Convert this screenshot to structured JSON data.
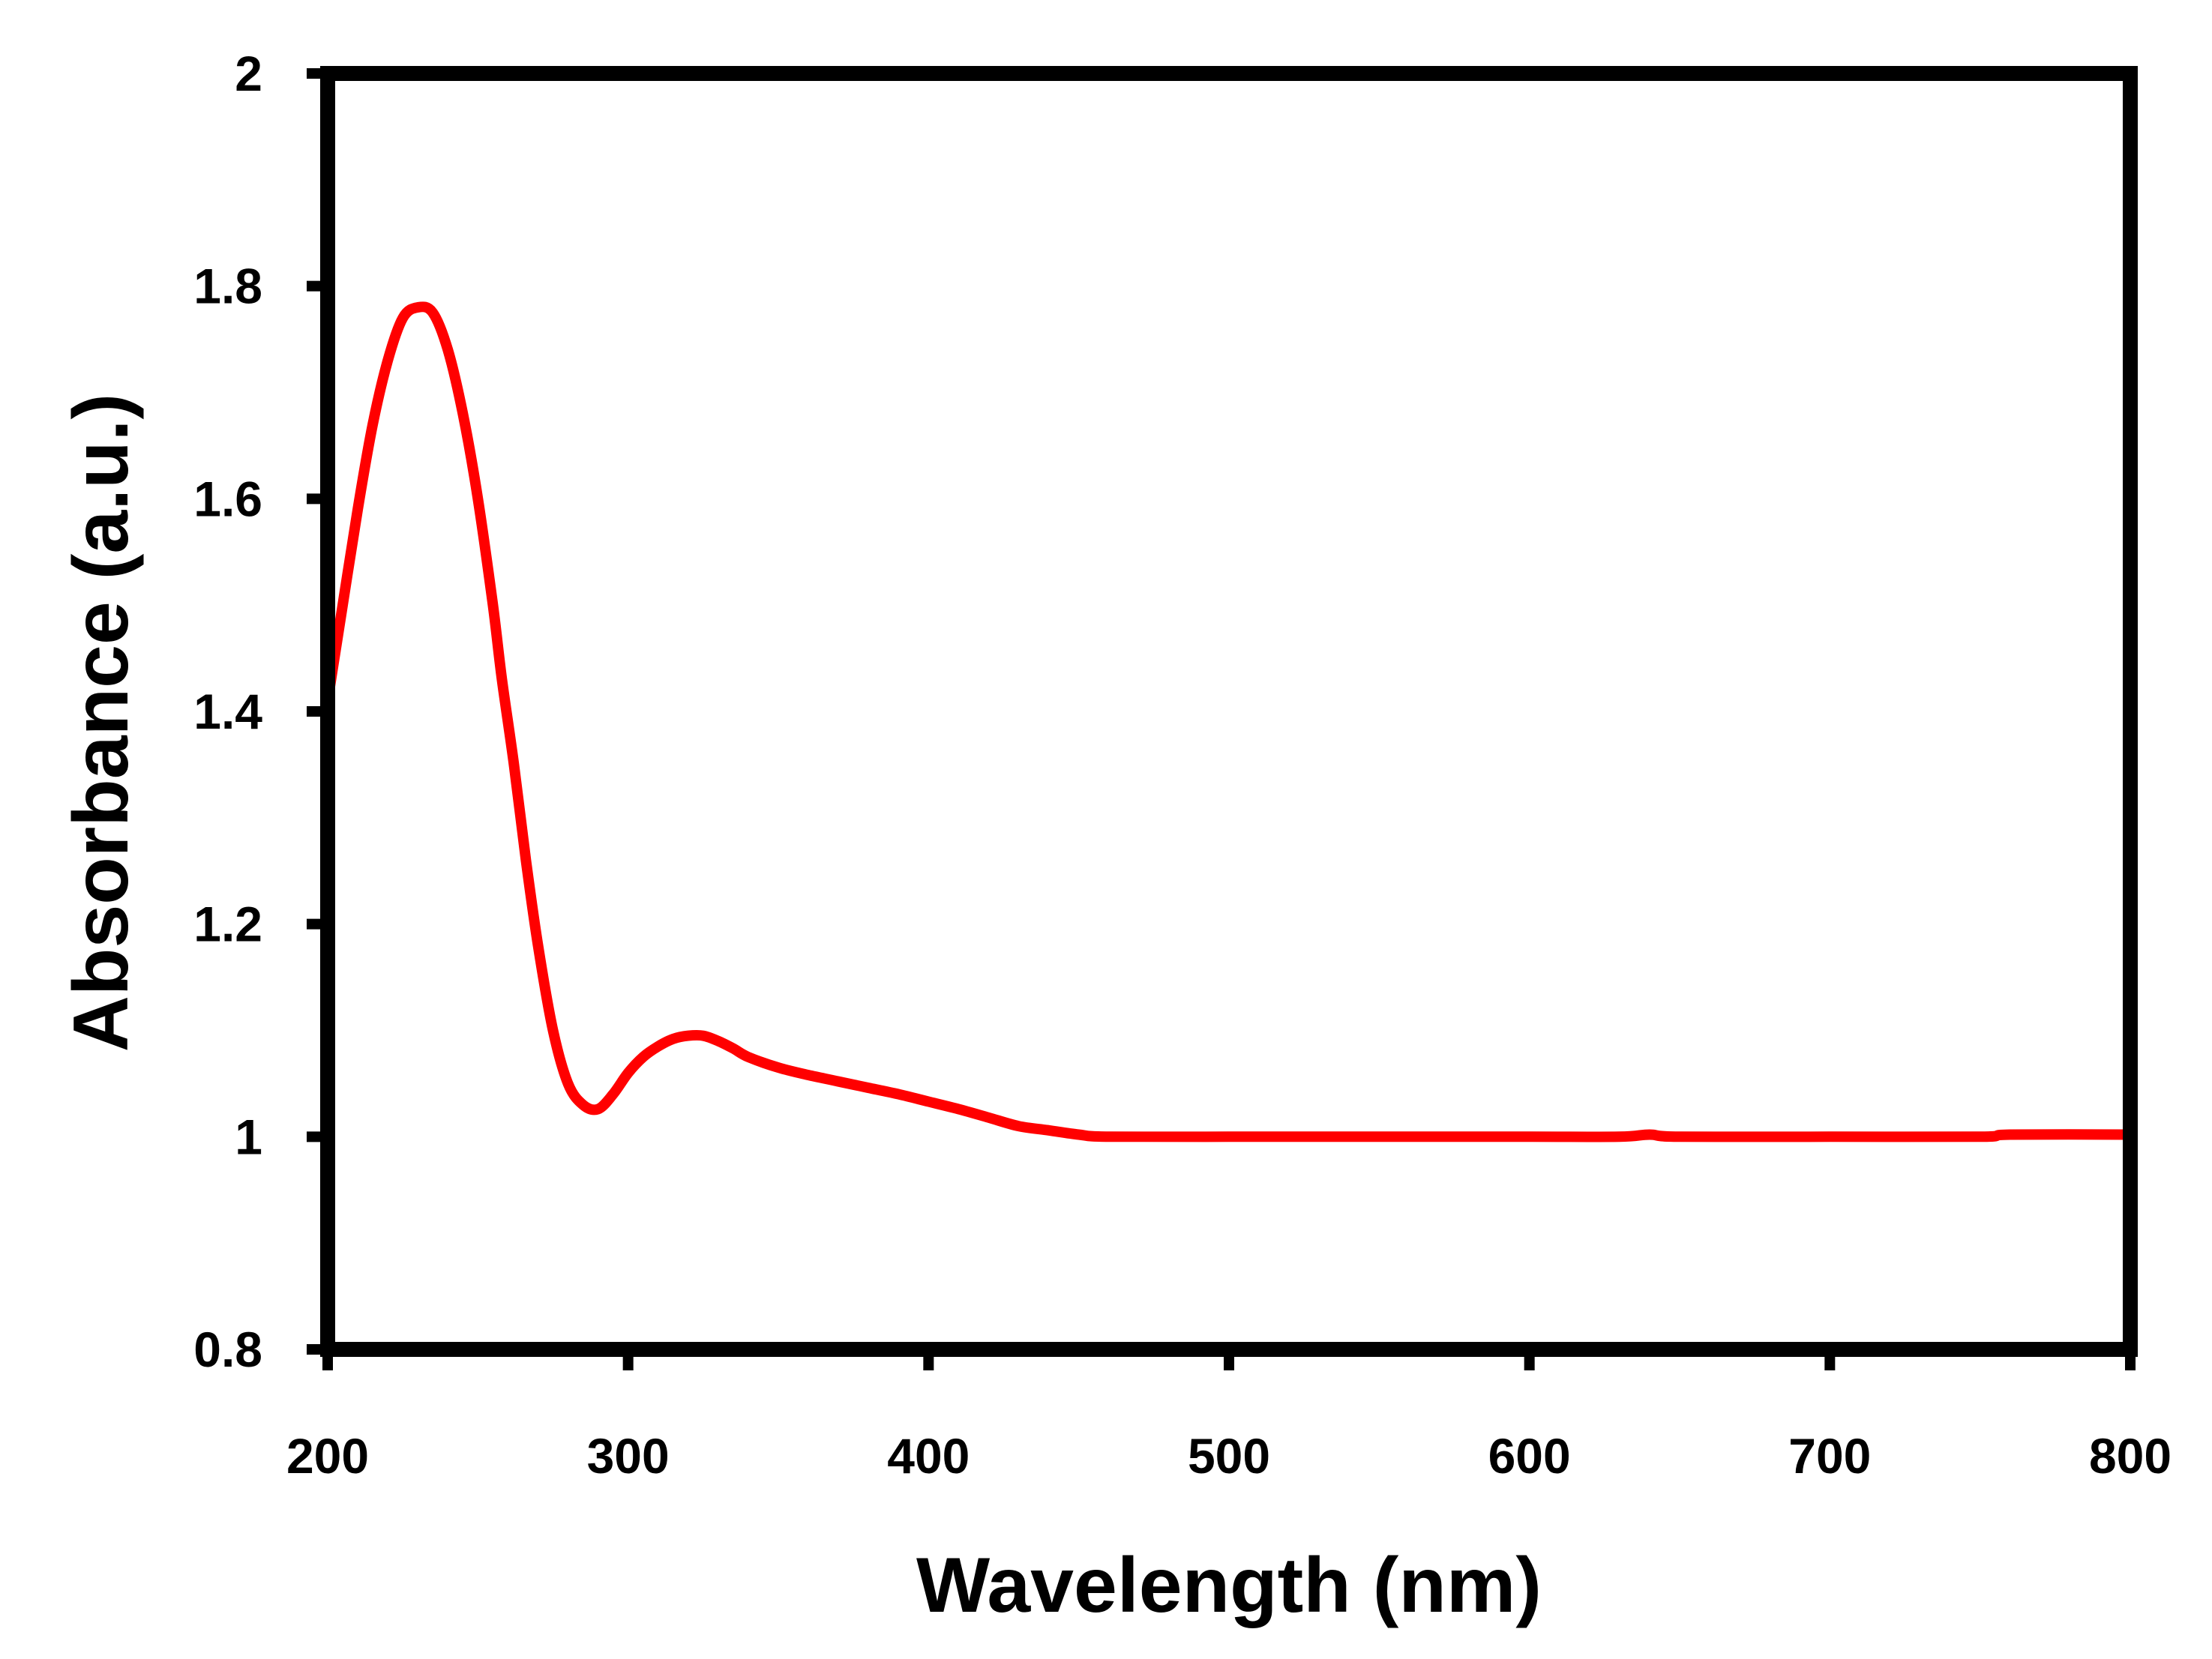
{
  "chart_data": {
    "type": "line",
    "title": "",
    "xlabel": "Wavelength (nm)",
    "ylabel": "Absorbance (a.u.)",
    "xlim": [
      200,
      800
    ],
    "ylim": [
      0.8,
      2
    ],
    "xticks": [
      200,
      300,
      400,
      500,
      600,
      700,
      800
    ],
    "yticks": [
      0.8,
      1,
      1.2,
      1.4,
      1.6,
      1.8,
      2
    ],
    "xtick_labels": [
      "200",
      "300",
      "400",
      "500",
      "600",
      "700",
      "800"
    ],
    "ytick_labels": [
      "0.8",
      "1",
      "1.2",
      "1.4",
      "1.6",
      "1.8",
      "2"
    ],
    "grid": false,
    "legend": "none",
    "series": [
      {
        "name": "Absorbance",
        "color": "#ff0000",
        "x": [
          200,
          205,
          210,
          215,
          220,
          225,
          230,
          235,
          240,
          245,
          250,
          255,
          258,
          262,
          266,
          270,
          275,
          280,
          285,
          290,
          295,
          300,
          305,
          310,
          315,
          320,
          325,
          330,
          335,
          340,
          350,
          360,
          370,
          380,
          390,
          400,
          410,
          420,
          430,
          440,
          450,
          460,
          500,
          550,
          600,
          630,
          640,
          650,
          700,
          750,
          760,
          800
        ],
        "y": [
          1.41,
          1.5,
          1.59,
          1.67,
          1.73,
          1.77,
          1.78,
          1.775,
          1.74,
          1.68,
          1.6,
          1.5,
          1.43,
          1.35,
          1.26,
          1.18,
          1.1,
          1.05,
          1.03,
          1.026,
          1.04,
          1.06,
          1.075,
          1.085,
          1.092,
          1.095,
          1.095,
          1.09,
          1.083,
          1.075,
          1.065,
          1.058,
          1.052,
          1.046,
          1.04,
          1.033,
          1.026,
          1.018,
          1.01,
          1.006,
          1.002,
          1.0,
          1.0,
          1.0,
          1.0,
          1.0,
          1.002,
          1.0,
          1.0,
          1.0,
          1.002,
          1.002
        ]
      }
    ]
  }
}
